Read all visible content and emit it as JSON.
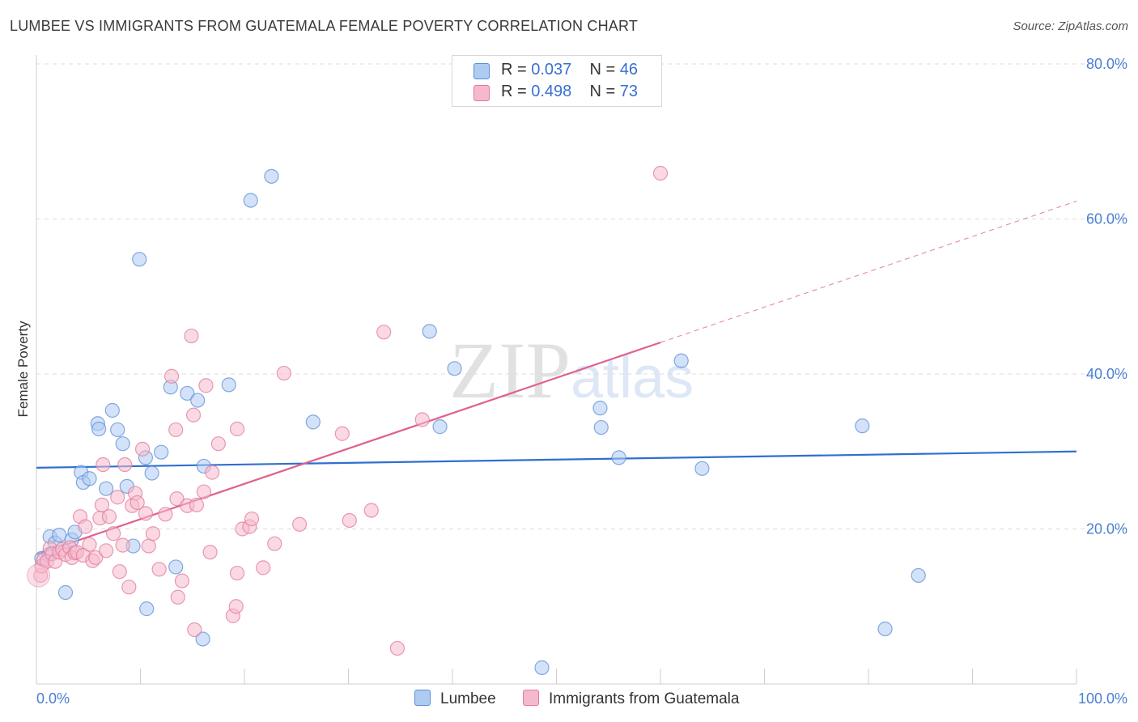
{
  "header": {
    "title": "LUMBEE VS IMMIGRANTS FROM GUATEMALA FEMALE POVERTY CORRELATION CHART",
    "source": "Source: ZipAtlas.com"
  },
  "watermark": {
    "zip": "ZIP",
    "atlas": "atlas"
  },
  "legend": {
    "series": [
      {
        "r_label": "R = ",
        "r_value": "0.037",
        "n_label": "N = ",
        "n_value": "46"
      },
      {
        "r_label": "R = ",
        "r_value": "0.498",
        "n_label": "N = ",
        "n_value": "73"
      }
    ]
  },
  "bottom_legend": {
    "lumbee": "Lumbee",
    "guatemala": "Immigrants from Guatemala"
  },
  "colors": {
    "lumbee_fill": "#aecbf2",
    "lumbee_stroke": "#5b8fd8",
    "lumbee_line": "#2f6fcf",
    "guat_fill": "#f6b9cc",
    "guat_stroke": "#e2799c",
    "guat_line": "#e0608e",
    "grid": "#dcdcdc",
    "axis_text": "#4a7fd4"
  },
  "chart_data": {
    "type": "scatter",
    "title": "LUMBEE VS IMMIGRANTS FROM GUATEMALA FEMALE POVERTY CORRELATION CHART",
    "xlabel": "",
    "ylabel": "Female Poverty",
    "xlim": [
      0,
      100
    ],
    "ylim": [
      0,
      80
    ],
    "x_tick_labels": [
      "0.0%",
      "100.0%"
    ],
    "y_ticks": [
      20,
      40,
      60,
      80
    ],
    "y_tick_labels": [
      "20.0%",
      "40.0%",
      "60.0%",
      "80.0%"
    ],
    "grid": true,
    "legend_placement": "top-center",
    "series": [
      {
        "name": "Lumbee",
        "r": 0.037,
        "n": 46,
        "trend": {
          "x": [
            0,
            100
          ],
          "y": [
            27.9,
            30.0
          ],
          "dashed_from": null
        },
        "points": [
          [
            0.5,
            16.2
          ],
          [
            1.2,
            16.7
          ],
          [
            1.3,
            19.0
          ],
          [
            1.8,
            18.2
          ],
          [
            2.2,
            19.2
          ],
          [
            2.8,
            11.8
          ],
          [
            3.4,
            18.6
          ],
          [
            3.7,
            19.6
          ],
          [
            4.3,
            27.3
          ],
          [
            4.5,
            26.0
          ],
          [
            5.1,
            26.5
          ],
          [
            5.9,
            33.6
          ],
          [
            6.0,
            32.9
          ],
          [
            6.7,
            25.2
          ],
          [
            7.3,
            35.3
          ],
          [
            7.8,
            32.8
          ],
          [
            8.3,
            31.0
          ],
          [
            8.7,
            25.5
          ],
          [
            9.3,
            17.8
          ],
          [
            9.9,
            54.8
          ],
          [
            10.5,
            29.2
          ],
          [
            10.6,
            9.7
          ],
          [
            11.1,
            27.2
          ],
          [
            12.0,
            29.9
          ],
          [
            12.9,
            38.3
          ],
          [
            13.4,
            15.1
          ],
          [
            14.5,
            37.5
          ],
          [
            15.5,
            36.6
          ],
          [
            16.1,
            28.1
          ],
          [
            16.0,
            5.8
          ],
          [
            18.5,
            38.6
          ],
          [
            20.6,
            62.4
          ],
          [
            22.6,
            65.5
          ],
          [
            26.6,
            33.8
          ],
          [
            37.8,
            45.5
          ],
          [
            38.8,
            33.2
          ],
          [
            40.2,
            40.7
          ],
          [
            48.6,
            2.1
          ],
          [
            54.2,
            35.6
          ],
          [
            54.3,
            33.1
          ],
          [
            56.0,
            29.2
          ],
          [
            62.0,
            41.7
          ],
          [
            64.0,
            27.8
          ],
          [
            79.4,
            33.3
          ],
          [
            81.6,
            7.1
          ],
          [
            84.8,
            14.0
          ]
        ]
      },
      {
        "name": "Immigrants from Guatemala",
        "r": 0.498,
        "n": 73,
        "trend": {
          "x": [
            0,
            100
          ],
          "y": [
            16.7,
            62.3
          ],
          "solid_to_x": 60
        },
        "points": [
          [
            0.4,
            14.0
          ],
          [
            0.5,
            15.2
          ],
          [
            0.7,
            16.0
          ],
          [
            1.0,
            15.8
          ],
          [
            1.3,
            17.5
          ],
          [
            1.5,
            16.8
          ],
          [
            1.8,
            15.8
          ],
          [
            2.2,
            17.0
          ],
          [
            2.5,
            17.4
          ],
          [
            2.8,
            16.7
          ],
          [
            3.2,
            17.6
          ],
          [
            3.4,
            16.3
          ],
          [
            3.7,
            16.9
          ],
          [
            3.9,
            17.0
          ],
          [
            4.2,
            21.6
          ],
          [
            4.5,
            16.6
          ],
          [
            4.7,
            20.3
          ],
          [
            5.1,
            18.0
          ],
          [
            5.4,
            15.9
          ],
          [
            5.7,
            16.3
          ],
          [
            6.1,
            21.4
          ],
          [
            6.3,
            23.1
          ],
          [
            6.4,
            28.3
          ],
          [
            6.7,
            17.2
          ],
          [
            7.0,
            21.6
          ],
          [
            7.4,
            19.4
          ],
          [
            7.8,
            24.1
          ],
          [
            8.0,
            14.5
          ],
          [
            8.3,
            17.9
          ],
          [
            8.5,
            28.3
          ],
          [
            8.9,
            12.5
          ],
          [
            9.2,
            23.0
          ],
          [
            9.5,
            24.6
          ],
          [
            9.7,
            23.4
          ],
          [
            10.2,
            30.3
          ],
          [
            10.5,
            22.0
          ],
          [
            10.8,
            17.8
          ],
          [
            11.2,
            19.4
          ],
          [
            11.8,
            14.8
          ],
          [
            12.4,
            21.9
          ],
          [
            13.0,
            39.7
          ],
          [
            13.4,
            32.8
          ],
          [
            13.5,
            23.9
          ],
          [
            13.6,
            11.2
          ],
          [
            14.0,
            13.3
          ],
          [
            14.5,
            23.0
          ],
          [
            14.9,
            44.9
          ],
          [
            15.1,
            34.7
          ],
          [
            15.2,
            7.0
          ],
          [
            15.4,
            23.1
          ],
          [
            16.1,
            24.8
          ],
          [
            16.3,
            38.5
          ],
          [
            16.7,
            17.0
          ],
          [
            16.9,
            27.3
          ],
          [
            17.5,
            31.0
          ],
          [
            18.9,
            8.8
          ],
          [
            19.2,
            10.0
          ],
          [
            19.3,
            14.3
          ],
          [
            19.3,
            32.9
          ],
          [
            19.8,
            20.0
          ],
          [
            20.5,
            20.3
          ],
          [
            20.7,
            21.3
          ],
          [
            21.8,
            15.0
          ],
          [
            22.9,
            18.1
          ],
          [
            23.8,
            40.1
          ],
          [
            25.3,
            20.6
          ],
          [
            29.4,
            32.3
          ],
          [
            30.1,
            21.1
          ],
          [
            32.2,
            22.4
          ],
          [
            33.4,
            45.4
          ],
          [
            34.7,
            4.6
          ],
          [
            37.1,
            34.1
          ],
          [
            60.0,
            65.9
          ]
        ]
      }
    ]
  }
}
